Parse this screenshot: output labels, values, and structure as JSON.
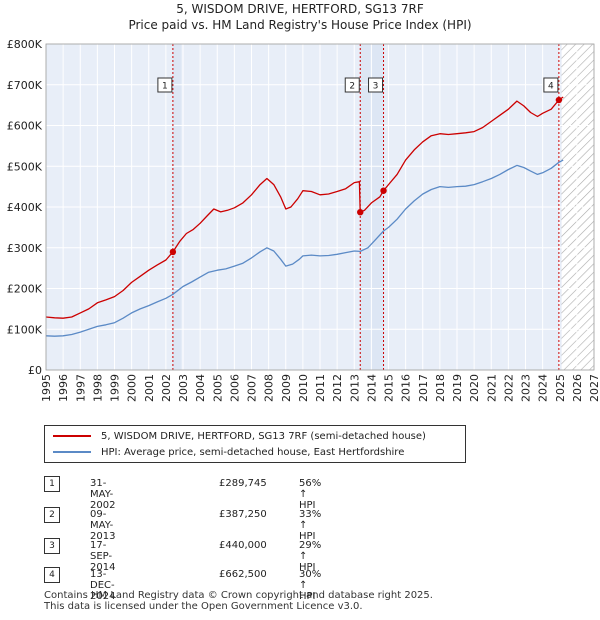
{
  "header": {
    "title": "5, WISDOM DRIVE, HERTFORD, SG13 7RF",
    "subtitle": "Price paid vs. HM Land Registry's House Price Index (HPI)"
  },
  "legend": {
    "items": [
      {
        "label": "5, WISDOM DRIVE, HERTFORD, SG13 7RF (semi-detached house)",
        "color": "#cc0000"
      },
      {
        "label": "HPI: Average price, semi-detached house, East Hertfordshire",
        "color": "#5b8ac6"
      }
    ]
  },
  "transactions": [
    {
      "num": "1",
      "date": "31-MAY-2002",
      "price": "£289,745",
      "hpi": "56% ↑ HPI"
    },
    {
      "num": "2",
      "date": "09-MAY-2013",
      "price": "£387,250",
      "hpi": "33% ↑ HPI"
    },
    {
      "num": "3",
      "date": "17-SEP-2014",
      "price": "£440,000",
      "hpi": "29% ↑ HPI"
    },
    {
      "num": "4",
      "date": "13-DEC-2024",
      "price": "£662,500",
      "hpi": "30% ↑ HPI"
    }
  ],
  "footer": {
    "line1": "Contains HM Land Registry data © Crown copyright and database right 2025.",
    "line2": "This data is licensed under the Open Government Licence v3.0."
  },
  "colors": {
    "property": "#cc0000",
    "hpi": "#5b8ac6",
    "plot_bg": "#e8eef8",
    "band": "#dde6f4",
    "grid": "#ffffff"
  },
  "chart_data": {
    "type": "line",
    "title": "5, WISDOM DRIVE, HERTFORD, SG13 7RF",
    "subtitle": "Price paid vs. HM Land Registry's House Price Index (HPI)",
    "xlabel": "",
    "ylabel": "",
    "xlim": [
      1995,
      2027
    ],
    "ylim": [
      0,
      800000
    ],
    "x_ticks": [
      "1995",
      "1996",
      "1997",
      "1998",
      "1999",
      "2000",
      "2001",
      "2002",
      "2003",
      "2004",
      "2005",
      "2006",
      "2007",
      "2008",
      "2009",
      "2010",
      "2011",
      "2012",
      "2013",
      "2014",
      "2015",
      "2016",
      "2017",
      "2018",
      "2019",
      "2020",
      "2021",
      "2022",
      "2023",
      "2024",
      "2025",
      "2026",
      "2027"
    ],
    "y_ticks": [
      {
        "value": 0,
        "label": "£0"
      },
      {
        "value": 100000,
        "label": "£100K"
      },
      {
        "value": 200000,
        "label": "£200K"
      },
      {
        "value": 300000,
        "label": "£300K"
      },
      {
        "value": 400000,
        "label": "£400K"
      },
      {
        "value": 500000,
        "label": "£500K"
      },
      {
        "value": 600000,
        "label": "£600K"
      },
      {
        "value": 700000,
        "label": "£700K"
      },
      {
        "value": 800000,
        "label": "£800K"
      }
    ],
    "grid": true,
    "forecast_from": 2025.1,
    "series": [
      {
        "name": "5, WISDOM DRIVE, HERTFORD, SG13 7RF (semi-detached house)",
        "color": "#cc0000",
        "points": [
          [
            1995.0,
            130000
          ],
          [
            1995.5,
            128000
          ],
          [
            1996.0,
            127000
          ],
          [
            1996.5,
            130000
          ],
          [
            1997.0,
            140000
          ],
          [
            1997.5,
            150000
          ],
          [
            1998.0,
            165000
          ],
          [
            1998.5,
            172000
          ],
          [
            1999.0,
            180000
          ],
          [
            1999.5,
            195000
          ],
          [
            2000.0,
            215000
          ],
          [
            2000.5,
            230000
          ],
          [
            2001.0,
            245000
          ],
          [
            2001.5,
            258000
          ],
          [
            2002.0,
            270000
          ],
          [
            2002.41,
            289745
          ],
          [
            2002.8,
            315000
          ],
          [
            2003.2,
            335000
          ],
          [
            2003.6,
            345000
          ],
          [
            2004.0,
            360000
          ],
          [
            2004.4,
            378000
          ],
          [
            2004.8,
            395000
          ],
          [
            2005.2,
            388000
          ],
          [
            2005.6,
            392000
          ],
          [
            2006.0,
            398000
          ],
          [
            2006.5,
            410000
          ],
          [
            2007.0,
            430000
          ],
          [
            2007.5,
            455000
          ],
          [
            2007.9,
            470000
          ],
          [
            2008.3,
            455000
          ],
          [
            2008.7,
            425000
          ],
          [
            2009.0,
            395000
          ],
          [
            2009.3,
            400000
          ],
          [
            2009.7,
            420000
          ],
          [
            2010.0,
            440000
          ],
          [
            2010.5,
            438000
          ],
          [
            2011.0,
            430000
          ],
          [
            2011.5,
            432000
          ],
          [
            2012.0,
            438000
          ],
          [
            2012.5,
            445000
          ],
          [
            2013.0,
            460000
          ],
          [
            2013.3,
            462000
          ],
          [
            2013.35,
            387250
          ],
          [
            2013.6,
            392000
          ],
          [
            2014.0,
            410000
          ],
          [
            2014.5,
            425000
          ],
          [
            2014.71,
            440000
          ],
          [
            2015.0,
            455000
          ],
          [
            2015.5,
            480000
          ],
          [
            2016.0,
            515000
          ],
          [
            2016.5,
            540000
          ],
          [
            2017.0,
            560000
          ],
          [
            2017.5,
            575000
          ],
          [
            2018.0,
            580000
          ],
          [
            2018.5,
            578000
          ],
          [
            2019.0,
            580000
          ],
          [
            2019.5,
            582000
          ],
          [
            2020.0,
            585000
          ],
          [
            2020.5,
            595000
          ],
          [
            2021.0,
            610000
          ],
          [
            2021.5,
            625000
          ],
          [
            2022.0,
            640000
          ],
          [
            2022.5,
            660000
          ],
          [
            2022.9,
            648000
          ],
          [
            2023.3,
            632000
          ],
          [
            2023.7,
            622000
          ],
          [
            2024.0,
            630000
          ],
          [
            2024.5,
            640000
          ],
          [
            2024.95,
            662500
          ],
          [
            2025.2,
            670000
          ]
        ]
      },
      {
        "name": "HPI: Average price, semi-detached house, East Hertfordshire",
        "color": "#5b8ac6",
        "points": [
          [
            1995.0,
            84000
          ],
          [
            1995.5,
            83000
          ],
          [
            1996.0,
            84000
          ],
          [
            1996.5,
            87000
          ],
          [
            1997.0,
            93000
          ],
          [
            1997.5,
            100000
          ],
          [
            1998.0,
            107000
          ],
          [
            1998.5,
            111000
          ],
          [
            1999.0,
            116000
          ],
          [
            1999.5,
            127000
          ],
          [
            2000.0,
            140000
          ],
          [
            2000.5,
            150000
          ],
          [
            2001.0,
            158000
          ],
          [
            2001.5,
            167000
          ],
          [
            2002.0,
            176000
          ],
          [
            2002.41,
            185800
          ],
          [
            2003.0,
            205000
          ],
          [
            2003.5,
            216000
          ],
          [
            2004.0,
            228000
          ],
          [
            2004.5,
            240000
          ],
          [
            2005.0,
            245000
          ],
          [
            2005.5,
            248000
          ],
          [
            2006.0,
            255000
          ],
          [
            2006.5,
            262000
          ],
          [
            2007.0,
            275000
          ],
          [
            2007.5,
            290000
          ],
          [
            2007.9,
            300000
          ],
          [
            2008.3,
            292000
          ],
          [
            2008.7,
            272000
          ],
          [
            2009.0,
            255000
          ],
          [
            2009.4,
            260000
          ],
          [
            2009.8,
            272000
          ],
          [
            2010.0,
            280000
          ],
          [
            2010.5,
            282000
          ],
          [
            2011.0,
            280000
          ],
          [
            2011.5,
            281000
          ],
          [
            2012.0,
            284000
          ],
          [
            2012.5,
            288000
          ],
          [
            2013.0,
            292000
          ],
          [
            2013.35,
            291000
          ],
          [
            2013.8,
            300000
          ],
          [
            2014.2,
            318000
          ],
          [
            2014.71,
            341000
          ],
          [
            2015.0,
            350000
          ],
          [
            2015.5,
            370000
          ],
          [
            2016.0,
            395000
          ],
          [
            2016.5,
            415000
          ],
          [
            2017.0,
            432000
          ],
          [
            2017.5,
            443000
          ],
          [
            2018.0,
            450000
          ],
          [
            2018.5,
            448000
          ],
          [
            2019.0,
            450000
          ],
          [
            2019.5,
            451000
          ],
          [
            2020.0,
            455000
          ],
          [
            2020.5,
            462000
          ],
          [
            2021.0,
            470000
          ],
          [
            2021.5,
            480000
          ],
          [
            2022.0,
            492000
          ],
          [
            2022.5,
            502000
          ],
          [
            2022.9,
            497000
          ],
          [
            2023.3,
            488000
          ],
          [
            2023.7,
            480000
          ],
          [
            2024.0,
            484000
          ],
          [
            2024.5,
            495000
          ],
          [
            2024.95,
            509600
          ],
          [
            2025.2,
            515000
          ]
        ]
      }
    ],
    "transactions": [
      {
        "label": "1",
        "x": 2002.41,
        "value": 289745
      },
      {
        "label": "2",
        "x": 2013.35,
        "value": 387250
      },
      {
        "label": "3",
        "x": 2014.71,
        "value": 440000
      },
      {
        "label": "4",
        "x": 2024.95,
        "value": 662500
      }
    ],
    "bands": [
      [
        2002.41,
        2002.9
      ],
      [
        2013.35,
        2014.71
      ],
      [
        2024.95,
        2025.1
      ]
    ]
  }
}
